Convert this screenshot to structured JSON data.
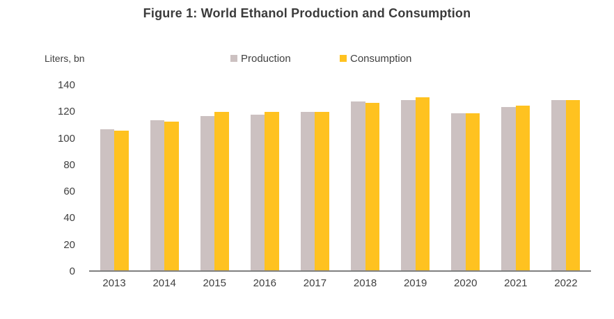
{
  "figure": {
    "title": "Figure 1: World Ethanol Production and Consumption",
    "y_axis_unit_label": "Liters, bn"
  },
  "legend": [
    {
      "label": "Production",
      "color": "#ccc1c1"
    },
    {
      "label": "Consumption",
      "color": "#ffc220"
    }
  ],
  "colors": {
    "production_bar": "#ccc1c1",
    "consumption_bar": "#ffc220",
    "axis_line": "#7f7f7f",
    "tick_text": "#404040",
    "title_text": "#3b3b3b",
    "background": "#ffffff"
  },
  "chart_data": {
    "type": "bar",
    "title": "Figure 1: World Ethanol Production and Consumption",
    "xlabel": "",
    "ylabel": "Liters, bn",
    "categories": [
      "2013",
      "2014",
      "2015",
      "2016",
      "2017",
      "2018",
      "2019",
      "2020",
      "2021",
      "2022"
    ],
    "series": [
      {
        "name": "Production",
        "color": "#ccc1c1",
        "values": [
          107,
          114,
          117,
          118,
          120,
          128,
          129,
          119,
          124,
          129
        ]
      },
      {
        "name": "Consumption",
        "color": "#ffc220",
        "values": [
          106,
          113,
          120,
          120,
          120,
          127,
          131,
          119,
          125,
          129
        ]
      }
    ],
    "ylim": [
      0,
      140
    ],
    "yticks": [
      0,
      20,
      40,
      60,
      80,
      100,
      120,
      140
    ],
    "grid": false,
    "legend_position": "top-center"
  }
}
